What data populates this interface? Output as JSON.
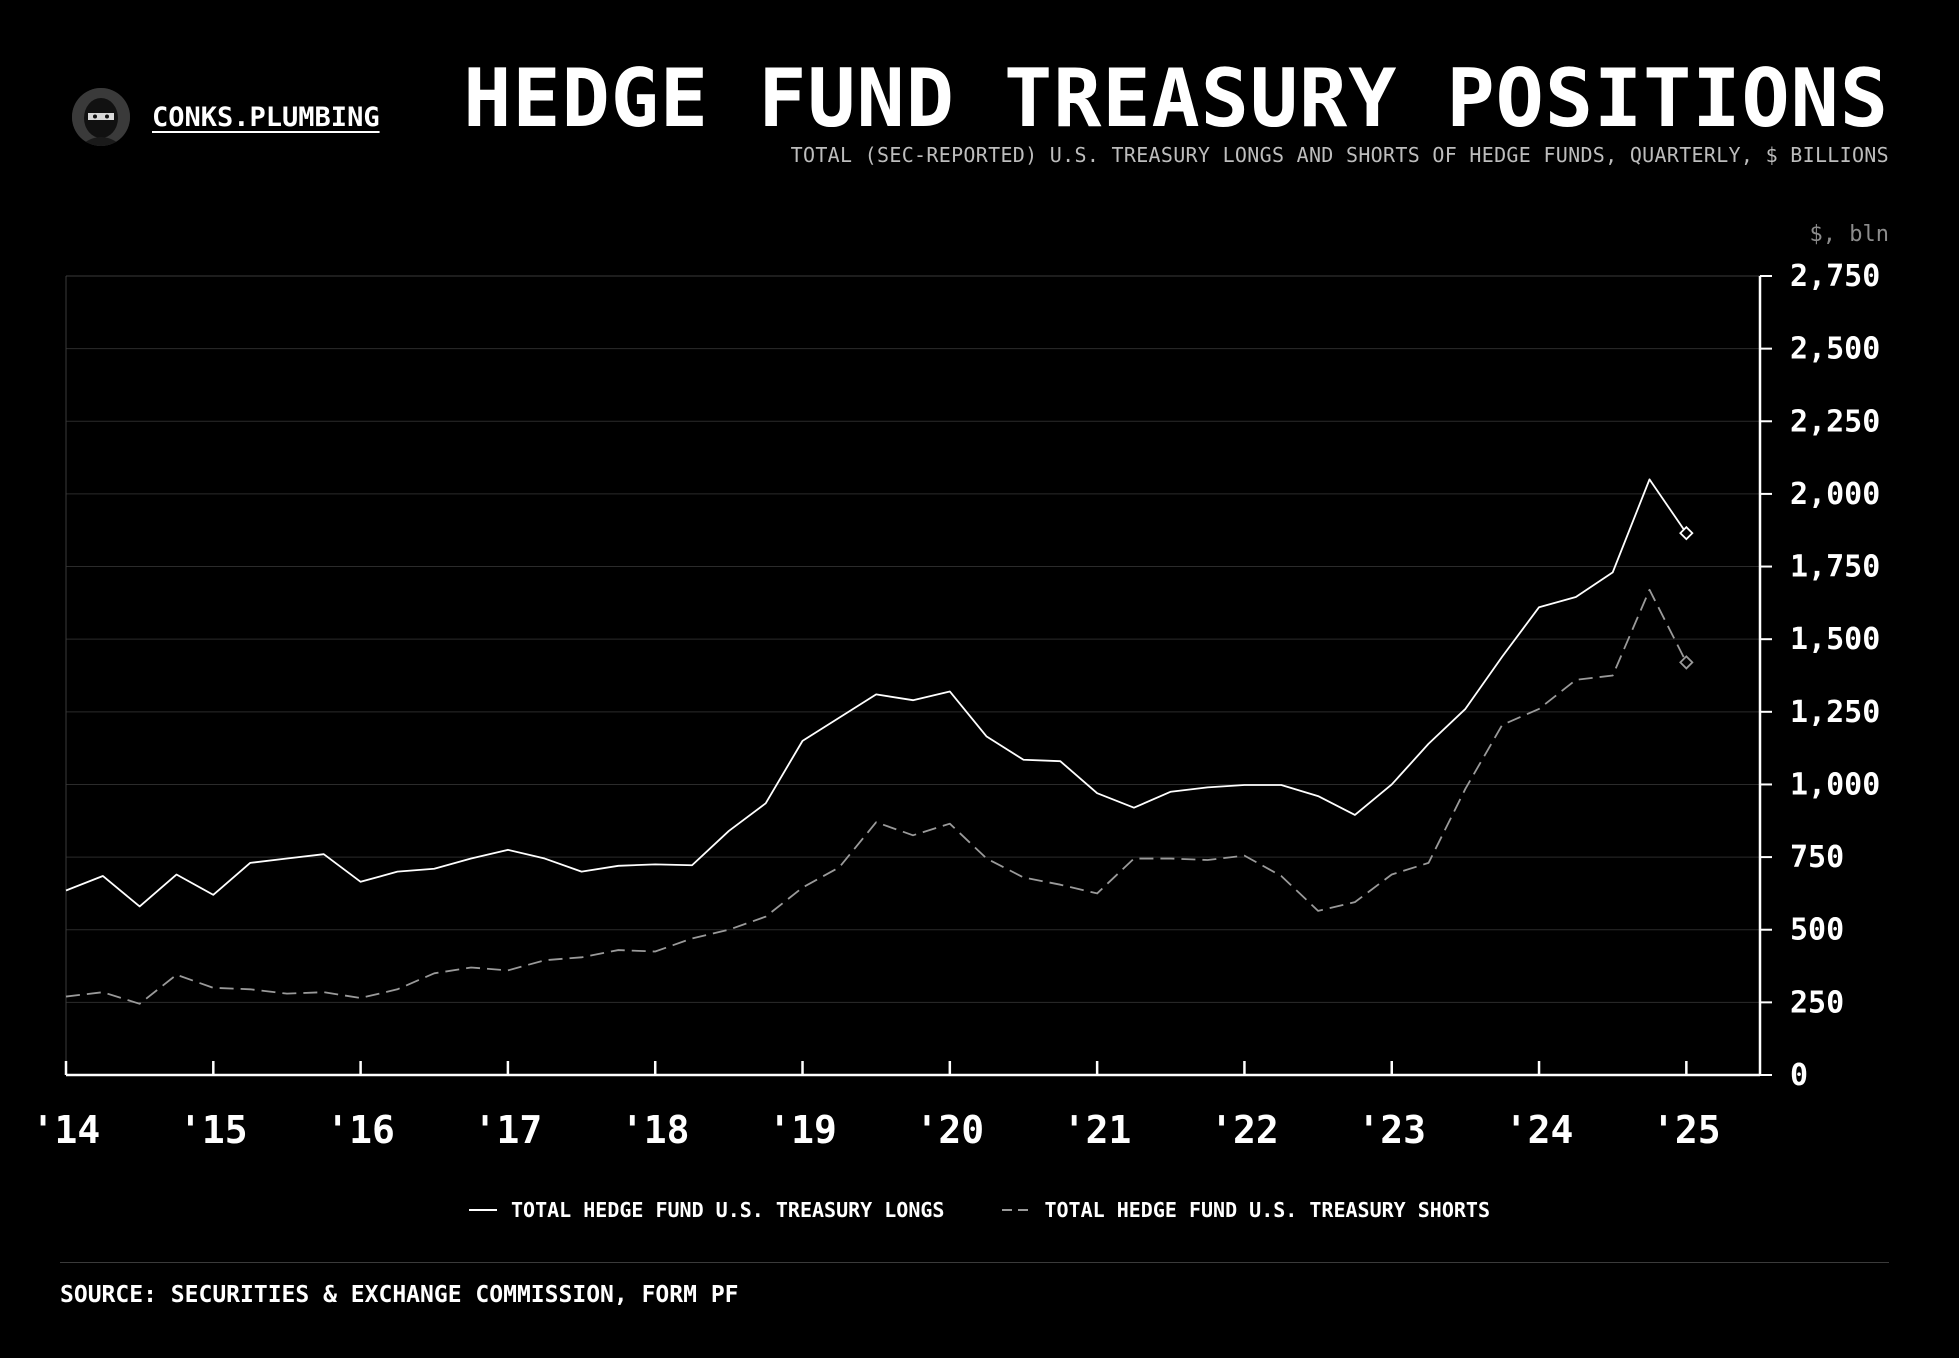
{
  "brand": {
    "name": "CONKS.PLUMBING"
  },
  "header": {
    "title": "HEDGE FUND TREASURY POSITIONS",
    "subtitle": "TOTAL (SEC-REPORTED) U.S. TREASURY LONGS AND SHORTS OF HEDGE FUNDS, QUARTERLY, $ BILLIONS",
    "unit": "$, bln"
  },
  "legend": {
    "longs": "TOTAL HEDGE FUND U.S. TREASURY LONGS",
    "shorts": "TOTAL HEDGE FUND U.S. TREASURY SHORTS"
  },
  "source": "SOURCE: SECURITIES & EXCHANGE COMMISSION, FORM PF",
  "colors": {
    "background": "#000000",
    "longs": "#ffffff",
    "shorts": "#9a9a9a",
    "grid": "#2b2b2b"
  },
  "chart_data": {
    "type": "line",
    "x": [
      2014.0,
      2014.25,
      2014.5,
      2014.75,
      2015.0,
      2015.25,
      2015.5,
      2015.75,
      2016.0,
      2016.25,
      2016.5,
      2016.75,
      2017.0,
      2017.25,
      2017.5,
      2017.75,
      2018.0,
      2018.25,
      2018.5,
      2018.75,
      2019.0,
      2019.25,
      2019.5,
      2019.75,
      2020.0,
      2020.25,
      2020.5,
      2020.75,
      2021.0,
      2021.25,
      2021.5,
      2021.75,
      2022.0,
      2022.25,
      2022.5,
      2022.75,
      2023.0,
      2023.25,
      2023.5,
      2023.75,
      2024.0,
      2024.25,
      2024.5,
      2024.75,
      2025.0
    ],
    "series": [
      {
        "name": "TOTAL HEDGE FUND U.S. TREASURY LONGS",
        "style": "solid",
        "values": [
          635,
          685,
          580,
          690,
          620,
          730,
          745,
          760,
          665,
          700,
          710,
          745,
          775,
          745,
          700,
          720,
          725,
          722,
          840,
          935,
          1150,
          1230,
          1310,
          1290,
          1320,
          1165,
          1085,
          1080,
          970,
          920,
          975,
          990,
          998,
          998,
          960,
          895,
          1000,
          1140,
          1260,
          1440,
          1610,
          1645,
          1730,
          2050,
          1865
        ]
      },
      {
        "name": "TOTAL HEDGE FUND U.S. TREASURY SHORTS",
        "style": "dashed",
        "values": [
          270,
          285,
          245,
          345,
          300,
          295,
          280,
          285,
          265,
          295,
          350,
          370,
          360,
          395,
          405,
          430,
          425,
          470,
          500,
          545,
          645,
          715,
          870,
          825,
          865,
          745,
          680,
          655,
          625,
          745,
          745,
          740,
          755,
          685,
          565,
          595,
          690,
          730,
          985,
          1205,
          1260,
          1360,
          1375,
          1670,
          1420
        ]
      }
    ],
    "x_ticks": [
      2014,
      2015,
      2016,
      2017,
      2018,
      2019,
      2020,
      2021,
      2022,
      2023,
      2024,
      2025
    ],
    "x_tick_labels": [
      "'14",
      "'15",
      "'16",
      "'17",
      "'18",
      "'19",
      "'20",
      "'21",
      "'22",
      "'23",
      "'24",
      "'25"
    ],
    "y_ticks": [
      0,
      250,
      500,
      750,
      1000,
      1250,
      1500,
      1750,
      2000,
      2250,
      2500,
      2750
    ],
    "y_tick_labels": [
      "0",
      "250",
      "500",
      "750",
      "1,000",
      "1,250",
      "1,500",
      "1,750",
      "2,000",
      "2,250",
      "2,500",
      "2,750"
    ],
    "xlim": [
      2014.0,
      2025.5
    ],
    "ylim": [
      0,
      2750
    ],
    "ylabel": "$, bln",
    "y_axis_position": "right",
    "grid": true,
    "legend_position": "bottom-center"
  }
}
